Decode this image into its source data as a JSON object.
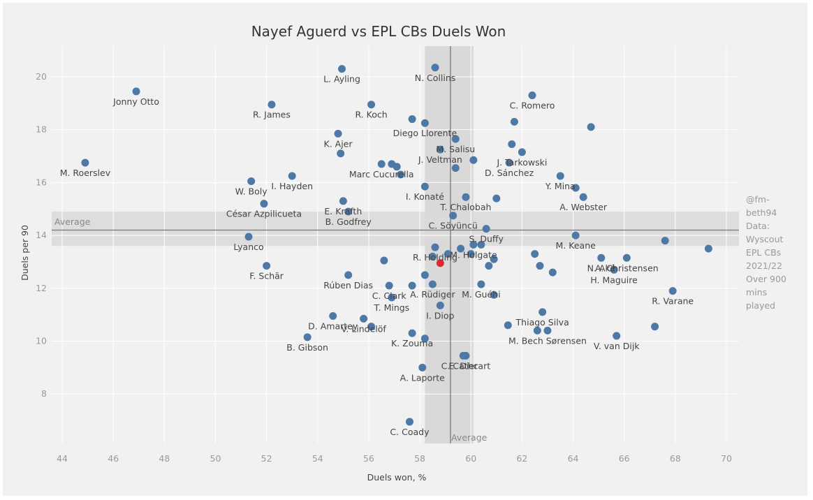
{
  "chart_data": {
    "type": "scatter",
    "title": "Nayef Aguerd vs EPL CBs Duels Won",
    "xlabel": "Duels won, %",
    "ylabel": "Duels per 90",
    "xlim": [
      43.5,
      70.5
    ],
    "ylim": [
      6.3,
      21.0
    ],
    "x_ticks": [
      44,
      46,
      48,
      50,
      52,
      54,
      56,
      58,
      60,
      62,
      64,
      66,
      68,
      70
    ],
    "y_ticks": [
      8,
      10,
      12,
      14,
      16,
      18,
      20
    ],
    "grid": true,
    "point_color": "#4e79a7",
    "highlight_color": "#e8262a",
    "band_color": "#d9d9d9",
    "average": {
      "x": 59.2,
      "y": 14.2,
      "x_band": [
        58.2,
        60.1
      ],
      "y_band": [
        13.6,
        14.9
      ],
      "x_label": "Average",
      "y_label": "Average"
    },
    "annotation": [
      "@fm-",
      "beth94",
      "Data:",
      "Wyscout",
      "EPL CBs",
      "2021/22",
      "Over 900",
      "mins",
      "played"
    ],
    "points": [
      {
        "label": "Jonny Otto",
        "x": 46.9,
        "y": 19.45
      },
      {
        "label": "M. Roerslev",
        "x": 44.9,
        "y": 16.75
      },
      {
        "label": "R. James",
        "x": 52.2,
        "y": 18.95
      },
      {
        "label": "L. Ayling",
        "x": 54.95,
        "y": 20.3
      },
      {
        "label": "N. Collins",
        "x": 58.6,
        "y": 20.35
      },
      {
        "label": "R. Koch",
        "x": 56.1,
        "y": 18.95
      },
      {
        "label": "C. Romero",
        "x": 62.4,
        "y": 19.3
      },
      {
        "label": "K. Ajer",
        "x": 54.8,
        "y": 17.85
      },
      {
        "label": "",
        "x": 57.7,
        "y": 18.4
      },
      {
        "label": "Diego Llorente",
        "x": 58.2,
        "y": 18.25
      },
      {
        "label": "",
        "x": 61.7,
        "y": 18.3
      },
      {
        "label": "",
        "x": 64.7,
        "y": 18.1
      },
      {
        "label": "M. Salisu",
        "x": 59.4,
        "y": 17.65
      },
      {
        "label": "J. Veltman",
        "x": 58.8,
        "y": 17.25
      },
      {
        "label": "",
        "x": 61.6,
        "y": 17.45
      },
      {
        "label": "J. Tarkowski",
        "x": 62.0,
        "y": 17.15
      },
      {
        "label": "",
        "x": 54.9,
        "y": 17.1
      },
      {
        "label": "Marc Cucurella",
        "x": 56.5,
        "y": 16.7
      },
      {
        "label": "",
        "x": 56.9,
        "y": 16.7
      },
      {
        "label": "",
        "x": 57.1,
        "y": 16.6
      },
      {
        "label": "",
        "x": 57.25,
        "y": 16.3
      },
      {
        "label": "",
        "x": 59.4,
        "y": 16.55
      },
      {
        "label": "",
        "x": 60.1,
        "y": 16.85
      },
      {
        "label": "D. Sánchez",
        "x": 61.5,
        "y": 16.75
      },
      {
        "label": "Y. Mina",
        "x": 63.5,
        "y": 16.25
      },
      {
        "label": "W. Boly",
        "x": 51.4,
        "y": 16.05
      },
      {
        "label": "I. Hayden",
        "x": 53.0,
        "y": 16.25
      },
      {
        "label": "I. Konaté",
        "x": 58.2,
        "y": 15.85
      },
      {
        "label": "",
        "x": 64.1,
        "y": 15.8
      },
      {
        "label": "T. Chalobah",
        "x": 59.8,
        "y": 15.45
      },
      {
        "label": "",
        "x": 61.0,
        "y": 15.4
      },
      {
        "label": "A. Webster",
        "x": 64.4,
        "y": 15.45
      },
      {
        "label": "E. Krafth",
        "x": 55.0,
        "y": 15.3
      },
      {
        "label": "César Azpilicueta",
        "x": 51.9,
        "y": 15.2
      },
      {
        "label": "B. Godfrey",
        "x": 55.2,
        "y": 14.9
      },
      {
        "label": "C. Söyüncü",
        "x": 59.3,
        "y": 14.75
      },
      {
        "label": "S. Duffy",
        "x": 60.6,
        "y": 14.25
      },
      {
        "label": "M. Keane",
        "x": 64.1,
        "y": 14.0
      },
      {
        "label": "Lyanco",
        "x": 51.3,
        "y": 13.95
      },
      {
        "label": "",
        "x": 67.6,
        "y": 13.8
      },
      {
        "label": "",
        "x": 69.3,
        "y": 13.5
      },
      {
        "label": "M. Holgate",
        "x": 60.1,
        "y": 13.65
      },
      {
        "label": "",
        "x": 60.4,
        "y": 13.65
      },
      {
        "label": "R. Holding",
        "x": 58.6,
        "y": 13.55
      },
      {
        "label": "",
        "x": 59.6,
        "y": 13.5
      },
      {
        "label": "",
        "x": 59.1,
        "y": 13.3
      },
      {
        "label": "",
        "x": 60.0,
        "y": 13.3
      },
      {
        "label": "",
        "x": 58.5,
        "y": 13.2
      },
      {
        "label": "Nayef Aguerd",
        "x": 58.8,
        "y": 12.95,
        "highlight": true
      },
      {
        "label": "",
        "x": 56.6,
        "y": 13.05
      },
      {
        "label": "",
        "x": 60.9,
        "y": 13.1
      },
      {
        "label": "N. Aké",
        "x": 65.1,
        "y": 13.15
      },
      {
        "label": "A. Christensen",
        "x": 66.1,
        "y": 13.15
      },
      {
        "label": "",
        "x": 62.5,
        "y": 13.3
      },
      {
        "label": "",
        "x": 60.7,
        "y": 12.85
      },
      {
        "label": "",
        "x": 62.7,
        "y": 12.85
      },
      {
        "label": "F. Schär",
        "x": 52.0,
        "y": 12.85
      },
      {
        "label": "Rúben Dias",
        "x": 55.2,
        "y": 12.5
      },
      {
        "label": "",
        "x": 58.2,
        "y": 12.5
      },
      {
        "label": "",
        "x": 63.2,
        "y": 12.6
      },
      {
        "label": "H. Maguire",
        "x": 65.6,
        "y": 12.7
      },
      {
        "label": "C. Clark",
        "x": 56.8,
        "y": 12.1
      },
      {
        "label": "",
        "x": 57.7,
        "y": 12.1
      },
      {
        "label": "A. Rüdiger",
        "x": 58.5,
        "y": 12.15
      },
      {
        "label": "M. Guéhi",
        "x": 60.4,
        "y": 12.15
      },
      {
        "label": "",
        "x": 60.9,
        "y": 11.75
      },
      {
        "label": "R. Varane",
        "x": 67.9,
        "y": 11.9
      },
      {
        "label": "T. Mings",
        "x": 56.9,
        "y": 11.65
      },
      {
        "label": "I. Diop",
        "x": 58.8,
        "y": 11.35
      },
      {
        "label": "Thiago Silva",
        "x": 62.8,
        "y": 11.1
      },
      {
        "label": "D. Amartey",
        "x": 54.6,
        "y": 10.95
      },
      {
        "label": "V. Lindelöf",
        "x": 55.8,
        "y": 10.85
      },
      {
        "label": "",
        "x": 56.1,
        "y": 10.55
      },
      {
        "label": "K. Zouma",
        "x": 57.7,
        "y": 10.3
      },
      {
        "label": "",
        "x": 58.2,
        "y": 10.1
      },
      {
        "label": "",
        "x": 61.45,
        "y": 10.6
      },
      {
        "label": "",
        "x": 62.6,
        "y": 10.4
      },
      {
        "label": "M. Bech Sørensen",
        "x": 63.0,
        "y": 10.4
      },
      {
        "label": "V. van Dijk",
        "x": 65.7,
        "y": 10.2
      },
      {
        "label": "",
        "x": 67.2,
        "y": 10.55
      },
      {
        "label": "B. Gibson",
        "x": 53.6,
        "y": 10.15
      },
      {
        "label": "C. Cathcart",
        "x": 59.8,
        "y": 9.45
      },
      {
        "label": "A. Laporte",
        "x": 58.1,
        "y": 9.0
      },
      {
        "label": "E. Dier",
        "x": 59.7,
        "y": 9.45
      },
      {
        "label": "C. Coady",
        "x": 57.6,
        "y": 6.95
      }
    ]
  }
}
